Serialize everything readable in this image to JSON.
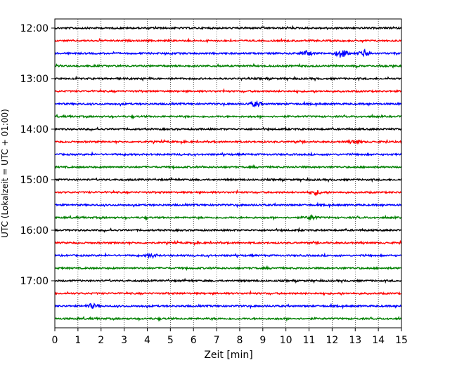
{
  "chart_data": {
    "type": "line",
    "xlabel": "Zeit  [min]",
    "ylabel": "UTC (Lokalzeit = UTC + 01:00)",
    "xlim": [
      0,
      15
    ],
    "x_ticks": [
      "0",
      "1",
      "2",
      "3",
      "4",
      "5",
      "6",
      "7",
      "8",
      "9",
      "10",
      "11",
      "12",
      "13",
      "14",
      "15"
    ],
    "y_ticks": [
      "12:00",
      "13:00",
      "14:00",
      "15:00",
      "16:00",
      "17:00"
    ],
    "grid": "vertical-dotted",
    "trace_start": "12:00",
    "trace_interval_min": 15,
    "trace_count": 24,
    "trace_colors": [
      "#000000",
      "#ff0000",
      "#0000ff",
      "#008000"
    ],
    "events": [
      {
        "trace": 2,
        "x": 12.4,
        "amp": 6
      },
      {
        "trace": 2,
        "x": 13.4,
        "amp": 4
      },
      {
        "trace": 2,
        "x": 10.9,
        "amp": 3
      },
      {
        "trace": 6,
        "x": 8.7,
        "amp": 3
      },
      {
        "trace": 9,
        "x": 13.0,
        "amp": 2
      },
      {
        "trace": 13,
        "x": 11.3,
        "amp": 2.5
      },
      {
        "trace": 15,
        "x": 11.1,
        "amp": 2.5
      },
      {
        "trace": 18,
        "x": 4.2,
        "amp": 2
      },
      {
        "trace": 22,
        "x": 1.6,
        "amp": 2.5
      }
    ]
  }
}
